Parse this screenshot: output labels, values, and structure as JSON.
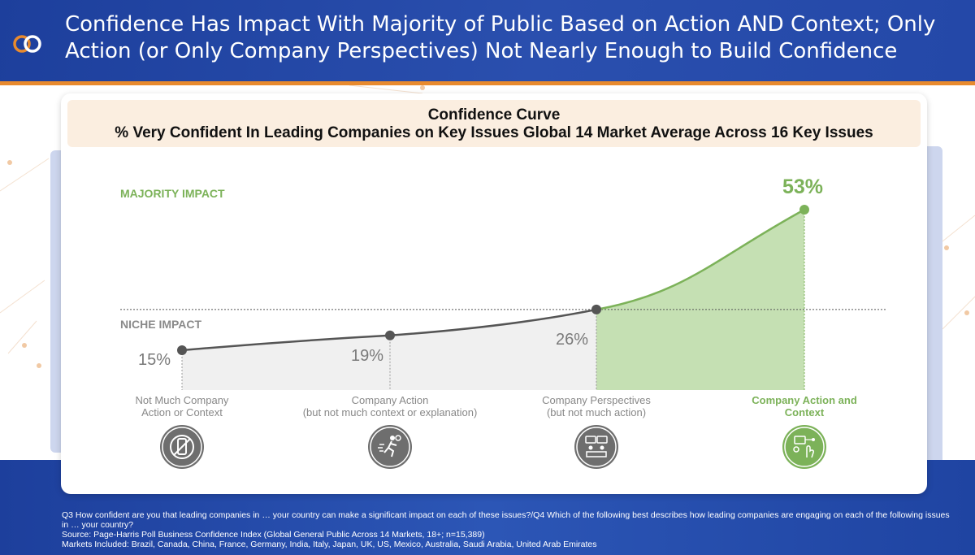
{
  "header": {
    "title": "Confidence Has Impact With Majority of Public Based on Action AND Context; Only Action (or Only Company Perspectives) Not Nearly Enough to Build Confidence"
  },
  "colors": {
    "brand_blue": "#1d3f9c",
    "accent_orange": "#e88a2e",
    "green": "#7cb259",
    "gray": "#666666"
  },
  "chart_data": {
    "type": "area",
    "title": "Confidence Curve",
    "subtitle": "% Very Confident In Leading Companies on Key Issues Global 14 Market Average Across 16 Key Issues",
    "categories": [
      "Not Much Company Action or Context",
      "Company Action (but not much context or explanation)",
      "Company Perspectives (but not much action)",
      "Company Action and Context"
    ],
    "values": [
      15,
      19,
      26,
      53
    ],
    "value_labels": [
      "15%",
      "19%",
      "26%",
      "53%"
    ],
    "unit": "%",
    "threshold": 26,
    "zones": {
      "majority": "MAJORITY IMPACT",
      "niche": "NICHE IMPACT"
    },
    "highlight_index": 3,
    "ylim": [
      0,
      55
    ]
  },
  "categories_display": [
    {
      "line1": "Not Much Company",
      "line2": "Action or Context",
      "icon": "no-phone-icon"
    },
    {
      "line1": "Company Action",
      "line2": "(but not much context or explanation)",
      "icon": "running-person-icon"
    },
    {
      "line1": "Company Perspectives",
      "line2": "(but not much action)",
      "icon": "meeting-icon"
    },
    {
      "line1": "Company Action and",
      "line2": "Context",
      "icon": "action-context-icon"
    }
  ],
  "footnote": {
    "q": "Q3 How confident are you that leading companies in … your country can make a significant impact on each of these issues?/Q4 Which of the following best describes how leading companies are engaging on each of the following issues in … your country?",
    "source": "Source: Page-Harris Poll Business Confidence Index (Global General Public Across 14 Markets, 18+; n=15,389)",
    "markets": "Markets Included: Brazil, Canada, China, France, Germany, India, Italy, Japan, UK, US, Mexico, Australia, Saudi Arabia, United Arab Emirates"
  }
}
